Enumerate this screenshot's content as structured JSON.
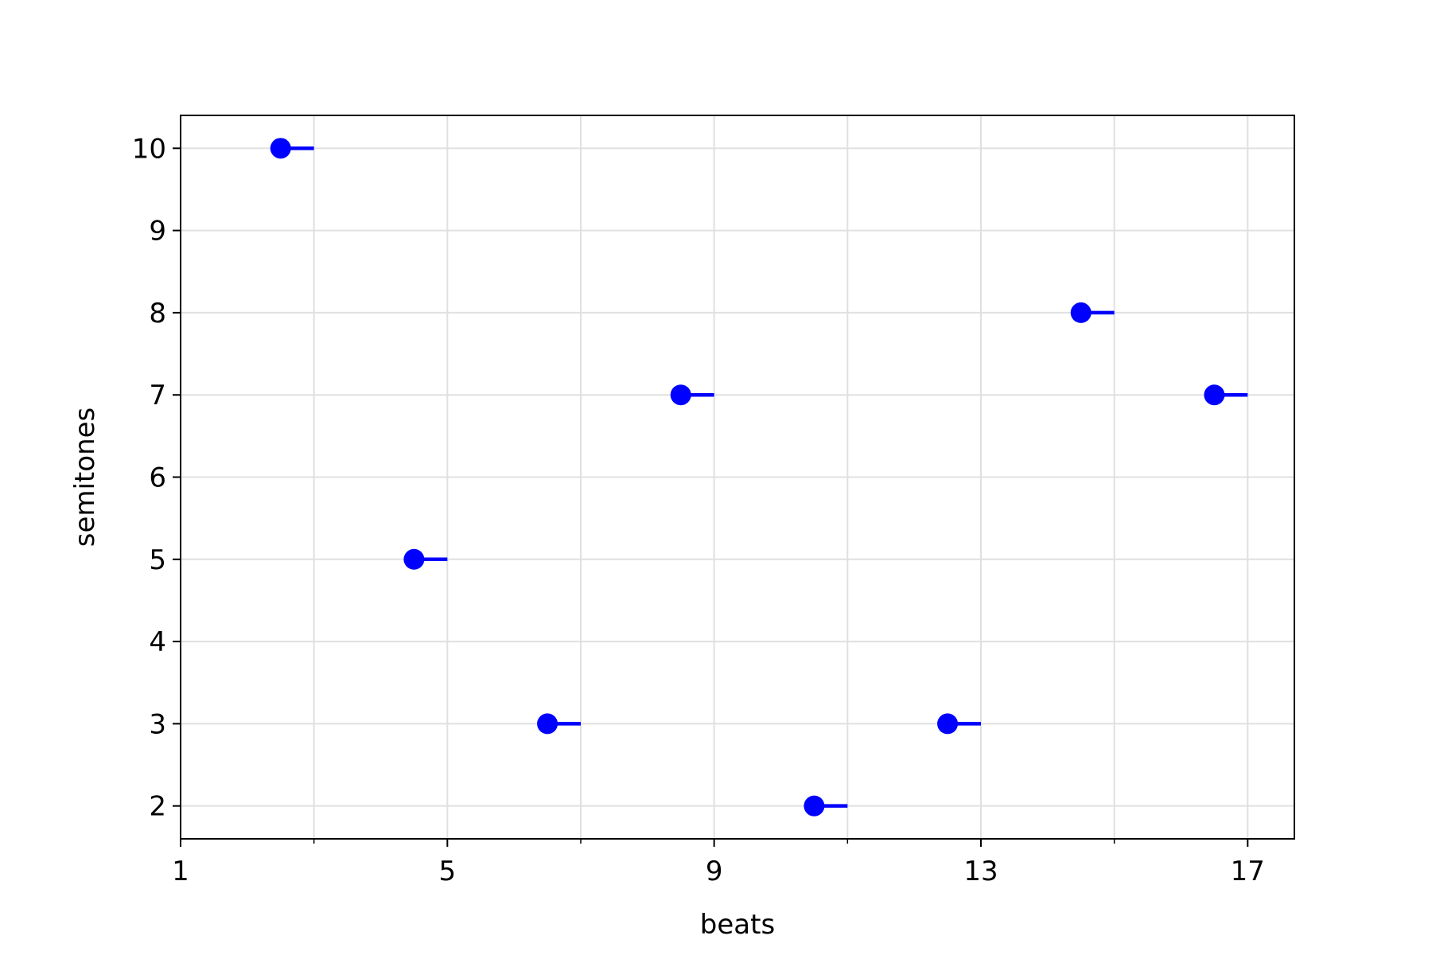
{
  "chart_data": {
    "type": "scatter",
    "title": "",
    "xlabel": "beats",
    "ylabel": "semitones",
    "xlim": [
      1,
      17.7
    ],
    "ylim": [
      1.6,
      10.4
    ],
    "x_major_ticks": [
      1,
      5,
      9,
      13,
      17
    ],
    "x_minor_ticks": [
      3,
      7,
      11,
      15
    ],
    "y_ticks": [
      2,
      3,
      4,
      5,
      6,
      7,
      8,
      9,
      10
    ],
    "grid": true,
    "marker_color": "#0000ff",
    "notes": [
      {
        "beat": 2.5,
        "semitone": 10,
        "end": 3.0
      },
      {
        "beat": 4.5,
        "semitone": 5,
        "end": 5.0
      },
      {
        "beat": 6.5,
        "semitone": 3,
        "end": 7.0
      },
      {
        "beat": 8.5,
        "semitone": 7,
        "end": 9.0
      },
      {
        "beat": 10.5,
        "semitone": 2,
        "end": 11.0
      },
      {
        "beat": 12.5,
        "semitone": 3,
        "end": 13.0
      },
      {
        "beat": 14.5,
        "semitone": 8,
        "end": 15.0
      },
      {
        "beat": 16.5,
        "semitone": 7,
        "end": 17.0
      }
    ]
  }
}
